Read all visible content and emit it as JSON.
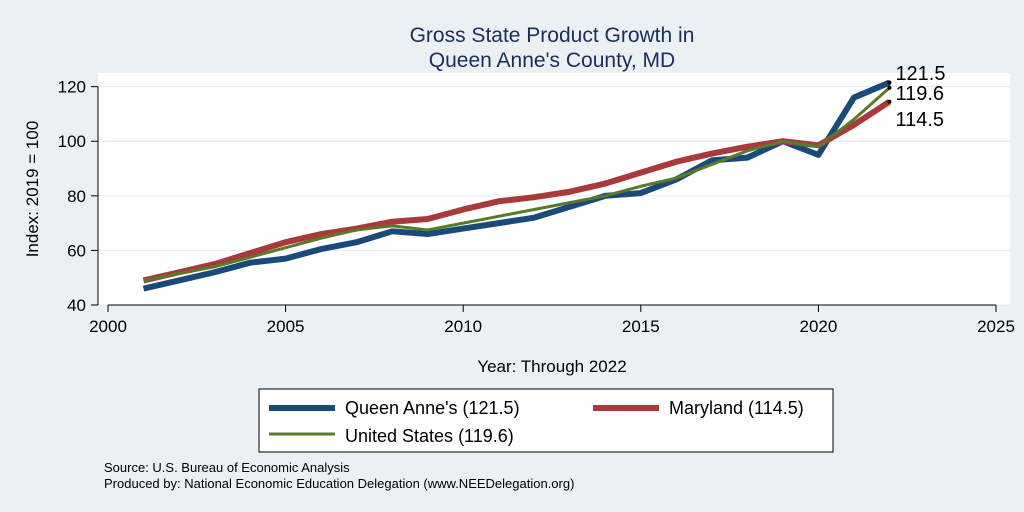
{
  "chart_data": {
    "type": "line",
    "title_lines": [
      "Gross State Product Growth in",
      "Queen Anne's County, MD"
    ],
    "xlabel": "Year: Through 2022",
    "ylabel": "Index: 2019 = 100",
    "xlim": [
      2000,
      2025
    ],
    "ylim": [
      40,
      125
    ],
    "x_ticks": [
      2000,
      2005,
      2010,
      2015,
      2020,
      2025
    ],
    "y_ticks": [
      40,
      60,
      80,
      100,
      120
    ],
    "x_tick_labels": [
      "2000",
      "2005",
      "2010",
      "2015",
      "2020",
      "2025"
    ],
    "y_tick_labels": [
      "40",
      "60",
      "80",
      "100",
      "120"
    ],
    "grid": "horizontal",
    "legend_position": "bottom",
    "x": [
      2001,
      2002,
      2003,
      2004,
      2005,
      2006,
      2007,
      2008,
      2009,
      2010,
      2011,
      2012,
      2013,
      2014,
      2015,
      2016,
      2017,
      2018,
      2019,
      2020,
      2021,
      2022
    ],
    "series": [
      {
        "name": "Queen Anne's",
        "legend_label": "Queen Anne's  (121.5)",
        "end_label": "121.5",
        "color": "#1a4a7a",
        "width": 6,
        "values": [
          46.0,
          49.0,
          52.0,
          55.5,
          57.0,
          60.5,
          63.0,
          67.0,
          66.0,
          68.0,
          70.0,
          72.0,
          76.0,
          80.0,
          81.0,
          86.0,
          93.0,
          94.0,
          100.0,
          95.0,
          116.0,
          121.5
        ]
      },
      {
        "name": "Maryland",
        "legend_label": "Maryland (114.5)",
        "end_label": "114.5",
        "color": "#a83a3c",
        "width": 6,
        "values": [
          49.0,
          52.0,
          55.0,
          59.0,
          63.0,
          66.0,
          68.0,
          70.5,
          71.5,
          75.0,
          78.0,
          79.5,
          81.5,
          84.5,
          88.5,
          92.5,
          95.5,
          98.0,
          100.0,
          98.5,
          106.0,
          114.5
        ]
      },
      {
        "name": "United States",
        "legend_label": "United States (119.6)",
        "end_label": "119.6",
        "color": "#5a7a2a",
        "width": 3,
        "values": [
          49.0,
          51.5,
          54.0,
          57.5,
          61.0,
          64.5,
          67.5,
          69.0,
          67.5,
          70.0,
          72.5,
          75.0,
          77.5,
          80.0,
          83.5,
          86.5,
          91.5,
          96.5,
          100.0,
          98.0,
          108.0,
          119.6
        ]
      }
    ]
  },
  "footer": {
    "source": "Source: U.S. Bureau of Economic Analysis",
    "produced_by": "Produced by: National Economic Education Delegation (www.NEEDelegation.org)"
  }
}
